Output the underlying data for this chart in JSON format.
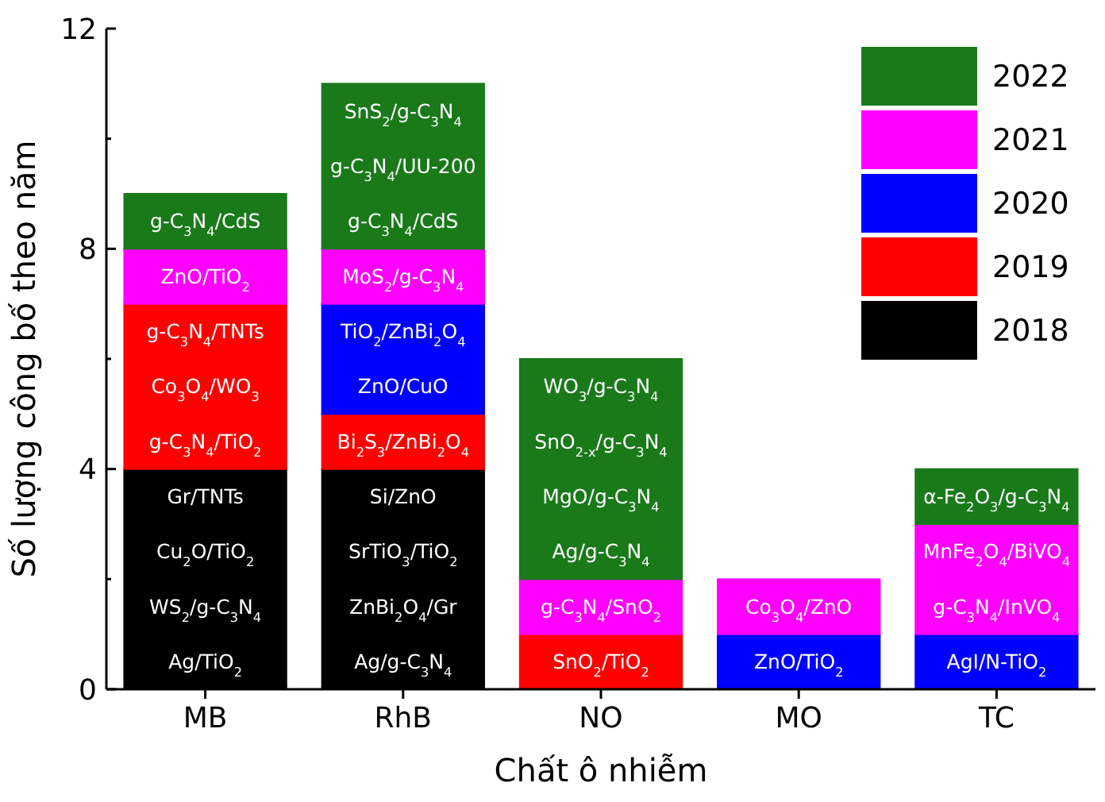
{
  "chart_data": {
    "type": "bar",
    "stacked": true,
    "xlabel": "Chất ô nhiễm",
    "ylabel": "Số lượng công bố theo năm",
    "categories": [
      "MB",
      "RhB",
      "NO",
      "MO",
      "TC"
    ],
    "ylim": [
      0,
      12
    ],
    "yticks": [
      0,
      4,
      8,
      12
    ],
    "grid": false,
    "legend": "top right",
    "series": [
      {
        "name": "2018",
        "color": "#000000",
        "values": [
          4,
          4,
          0,
          0,
          0
        ]
      },
      {
        "name": "2019",
        "color": "#ff0000",
        "values": [
          3,
          1,
          1,
          0,
          0
        ]
      },
      {
        "name": "2020",
        "color": "#0000ff",
        "values": [
          0,
          2,
          0,
          1,
          1
        ]
      },
      {
        "name": "2021",
        "color": "#ff00ff",
        "values": [
          1,
          1,
          1,
          1,
          2
        ]
      },
      {
        "name": "2022",
        "color": "#1a7a1a",
        "values": [
          1,
          3,
          4,
          0,
          1
        ]
      }
    ],
    "annotations": [
      "Ag/TiO$_{2}$",
      "WS$_{2}$/g-C$_{3}$N$_{4}$",
      "Cu$_{2}$O/TiO$_{2}$",
      "Gr/TNTs",
      "g-C$_{3}$N$_{4}$/TiO$_{2}$",
      "Co$_{3}$O$_{4}$/WO$_{3}$",
      "g-C$_{3}$N$_{4}$/TNTs",
      "ZnO/TiO$_{2}$",
      "g-C$_{3}$N$_{4}$/CdS",
      "Ag/g-C$_{3}$N$_{4}$",
      "ZnBi$_{2}$O$_{4}$/Gr",
      "SrTiO$_{3}$/TiO$_{2}$",
      "Si/ZnO",
      "Bi$_{2}$S$_{3}$/ZnBi$_{2}$O$_{4}$",
      "ZnO/CuO",
      "TiO$_{2}$/ZnBi$_{2}$O$_{4}$",
      "MoS$_{2}$/g-C$_{3}$N$_{4}$",
      "g-C$_{3}$N$_{4}$/CdS",
      "g-C$_{3}$N$_{4}$/UU-200",
      "SnS$_{2}$/g-C$_{3}$N$_{4}$",
      "SnO$_{2}$/TiO$_{2}$",
      "g-C$_{3}$N$_{4}$/SnO$_{2}$",
      "Ag/g-C$_{3}$N$_{4}$",
      "MgO/g-C$_{3}$N$_{4}$",
      "SnO$_{2-x}$/g-C$_{3}$N$_{4}$",
      "WO$_{3}$/g-C$_{3}$N$_{4}$",
      "ZnO/TiO$_{2}$",
      "Co$_{3}$O$_{4}$/ZnO",
      "AgI/N-TiO$_{2}$",
      "g-C$_{3}$N$_{4}$/InVO$_{4}$",
      "MnFe$_{2}$O$_{4}$/BiVO$_{4}$",
      "α-Fe$_{2}$O$_{3}$/g-C$_{3}$N$_{4}$"
    ]
  }
}
